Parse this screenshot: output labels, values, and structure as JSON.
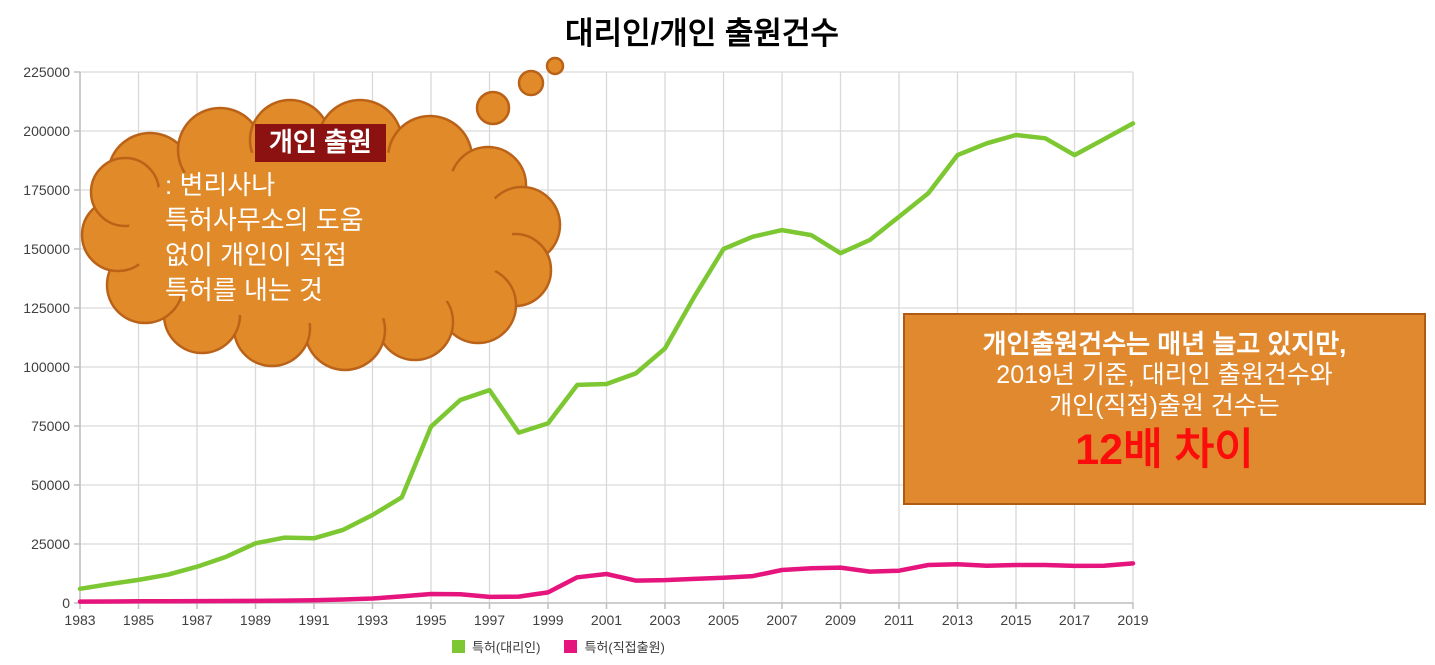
{
  "title": "대리인/개인 출원건수",
  "colors": {
    "agent_line": "#7DC832",
    "direct_line": "#E6147D",
    "grid": "#D9D9D9",
    "axis": "#BFBFBF",
    "axis_text": "#3F3F3F",
    "cloud_fill": "#E08A2A",
    "cloud_stroke": "#B96218",
    "header_bg": "#8C1211",
    "box_fill": "#E0892F",
    "box_border": "#AE5B13",
    "highlight_red": "#FB0D0C"
  },
  "cloud": {
    "header": "개인 출원",
    "lines": [
      ": 변리사나",
      "특허사무소의 도움",
      "없이 개인이 직접",
      "특허를 내는 것"
    ]
  },
  "callout_box": {
    "line1": "개인출원건수는 매년 늘고 있지만,",
    "line2": "2019년 기준, 대리인 출원건수와",
    "line3": "개인(직접)출원 건수는",
    "highlight": "12배 차이"
  },
  "legend": {
    "items": [
      {
        "label": "특허(대리인)"
      },
      {
        "label": "특허(직접출원)"
      }
    ]
  },
  "chart_data": {
    "type": "line",
    "title": "대리인/개인 출원건수",
    "xlabel": "",
    "ylabel": "",
    "ylim": [
      0,
      225000
    ],
    "ytick_step": 25000,
    "xtick_step": 2,
    "grid": true,
    "legend_position": "bottom",
    "x": [
      1983,
      1984,
      1985,
      1986,
      1987,
      1988,
      1989,
      1990,
      1991,
      1992,
      1993,
      1994,
      1995,
      1996,
      1997,
      1998,
      1999,
      2000,
      2001,
      2002,
      2003,
      2004,
      2005,
      2006,
      2007,
      2008,
      2009,
      2010,
      2011,
      2012,
      2013,
      2014,
      2015,
      2016,
      2017,
      2018,
      2019
    ],
    "series": [
      {
        "name": "특허(대리인)",
        "color": "#7DC832",
        "values": [
          6000,
          8000,
          9800,
          12000,
          15400,
          19600,
          25300,
          27700,
          27400,
          31000,
          37300,
          44800,
          74700,
          86000,
          90200,
          72200,
          76100,
          92400,
          92800,
          97300,
          107900,
          129800,
          150000,
          155200,
          158000,
          155900,
          148200,
          153800,
          163700,
          173600,
          189800,
          194800,
          198300,
          196900,
          189800,
          196500,
          203200
        ]
      },
      {
        "name": "특허(직접출원)",
        "color": "#E6147D",
        "values": [
          600,
          650,
          700,
          750,
          800,
          850,
          900,
          1000,
          1200,
          1500,
          1900,
          2800,
          3800,
          3700,
          2600,
          2700,
          4500,
          10900,
          12300,
          9500,
          9700,
          10200,
          10700,
          11400,
          14000,
          14700,
          15000,
          13300,
          13700,
          16100,
          16400,
          15800,
          16100,
          16100,
          15700,
          15800,
          16800
        ]
      }
    ]
  }
}
